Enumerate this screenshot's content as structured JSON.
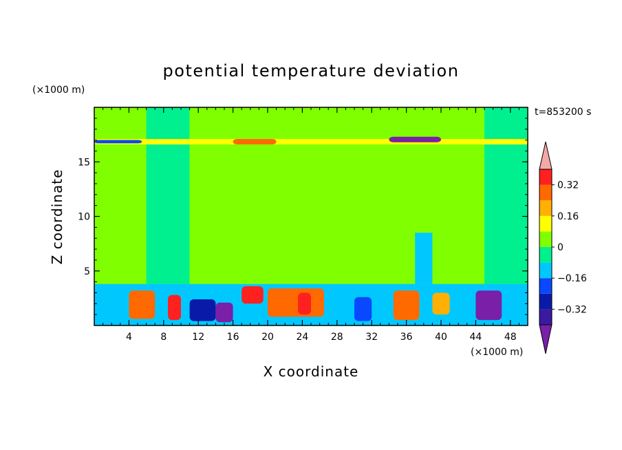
{
  "chart_data": {
    "type": "heatmap",
    "title": "potential temperature deviation",
    "xlabel": "X coordinate",
    "ylabel": "Z coordinate",
    "x_unit": "(×1000 m)",
    "y_unit": "(×1000 m)",
    "time_label": "t=853200 s",
    "xlim": [
      0,
      50
    ],
    "ylim": [
      0,
      20
    ],
    "x_ticks": [
      4,
      8,
      12,
      16,
      20,
      24,
      28,
      32,
      36,
      40,
      44,
      48
    ],
    "y_ticks": [
      5,
      10,
      15
    ],
    "colorbar": {
      "levels": [
        -0.48,
        -0.4,
        -0.32,
        -0.24,
        -0.16,
        -0.08,
        0,
        0.08,
        0.16,
        0.24,
        0.32,
        0.4
      ],
      "colors": [
        "#7a1fa8",
        "#3a1aa0",
        "#0a1aa8",
        "#0a48ff",
        "#00c8ff",
        "#00f090",
        "#80ff00",
        "#ffff00",
        "#ffb000",
        "#ff6a00",
        "#ff2020",
        "#f5a8a8"
      ],
      "tick_labels": [
        "0.32",
        "0.16",
        "0",
        "−0.16",
        "−0.32"
      ],
      "tick_values": [
        0.32,
        0.16,
        0,
        -0.16,
        -0.32
      ]
    },
    "regions": [
      {
        "x": [
          0,
          50
        ],
        "y": [
          0,
          20
        ],
        "level": 0
      },
      {
        "x": [
          0,
          6
        ],
        "y": [
          3.8,
          20
        ],
        "level": 0.04
      },
      {
        "x": [
          6,
          11
        ],
        "y": [
          3.8,
          20
        ],
        "level": -0.02
      },
      {
        "x": [
          11,
          28
        ],
        "y": [
          3.8,
          20
        ],
        "level": 0.04
      },
      {
        "x": [
          28,
          33
        ],
        "y": [
          3.8,
          20
        ],
        "level": 0.04
      },
      {
        "x": [
          33,
          45
        ],
        "y": [
          3.8,
          20
        ],
        "level": 0.02
      },
      {
        "x": [
          45,
          50
        ],
        "y": [
          3.8,
          20
        ],
        "level": -0.02
      },
      {
        "x": [
          37,
          39
        ],
        "y": [
          3.8,
          8.5
        ],
        "level": -0.1
      }
    ],
    "layers": [
      {
        "name": "tropopause",
        "y": [
          16.6,
          17.1
        ],
        "level": 0.12
      },
      {
        "name": "boundary-layer",
        "y": [
          0,
          3.8
        ],
        "level": -0.1
      }
    ],
    "anomalies": [
      {
        "x": [
          4,
          7
        ],
        "y": [
          0.6,
          3.2
        ],
        "level": 0.24
      },
      {
        "x": [
          8.5,
          10
        ],
        "y": [
          0.5,
          2.8
        ],
        "level": 0.36
      },
      {
        "x": [
          11,
          14
        ],
        "y": [
          0.4,
          2.4
        ],
        "level": -0.3
      },
      {
        "x": [
          14,
          16
        ],
        "y": [
          0.3,
          2.1
        ],
        "level": -0.44
      },
      {
        "x": [
          17,
          19.5
        ],
        "y": [
          2,
          3.6
        ],
        "level": 0.36
      },
      {
        "x": [
          20,
          26.5
        ],
        "y": [
          0.8,
          3.4
        ],
        "level": 0.24
      },
      {
        "x": [
          23.5,
          25
        ],
        "y": [
          1,
          3
        ],
        "level": 0.36
      },
      {
        "x": [
          30,
          32
        ],
        "y": [
          0.4,
          2.6
        ],
        "level": -0.2
      },
      {
        "x": [
          34.5,
          37.5
        ],
        "y": [
          0.5,
          3.2
        ],
        "level": 0.28
      },
      {
        "x": [
          39,
          41
        ],
        "y": [
          1,
          3
        ],
        "level": 0.2
      },
      {
        "x": [
          44,
          47
        ],
        "y": [
          0.5,
          3.2
        ],
        "level": -0.42
      },
      {
        "x": [
          34,
          40
        ],
        "y": [
          16.8,
          17.3
        ],
        "level": -0.44
      },
      {
        "x": [
          0,
          5.5
        ],
        "y": [
          16.7,
          17
        ],
        "level": -0.18
      },
      {
        "x": [
          16,
          21
        ],
        "y": [
          16.6,
          17.1
        ],
        "level": 0.28
      }
    ]
  }
}
